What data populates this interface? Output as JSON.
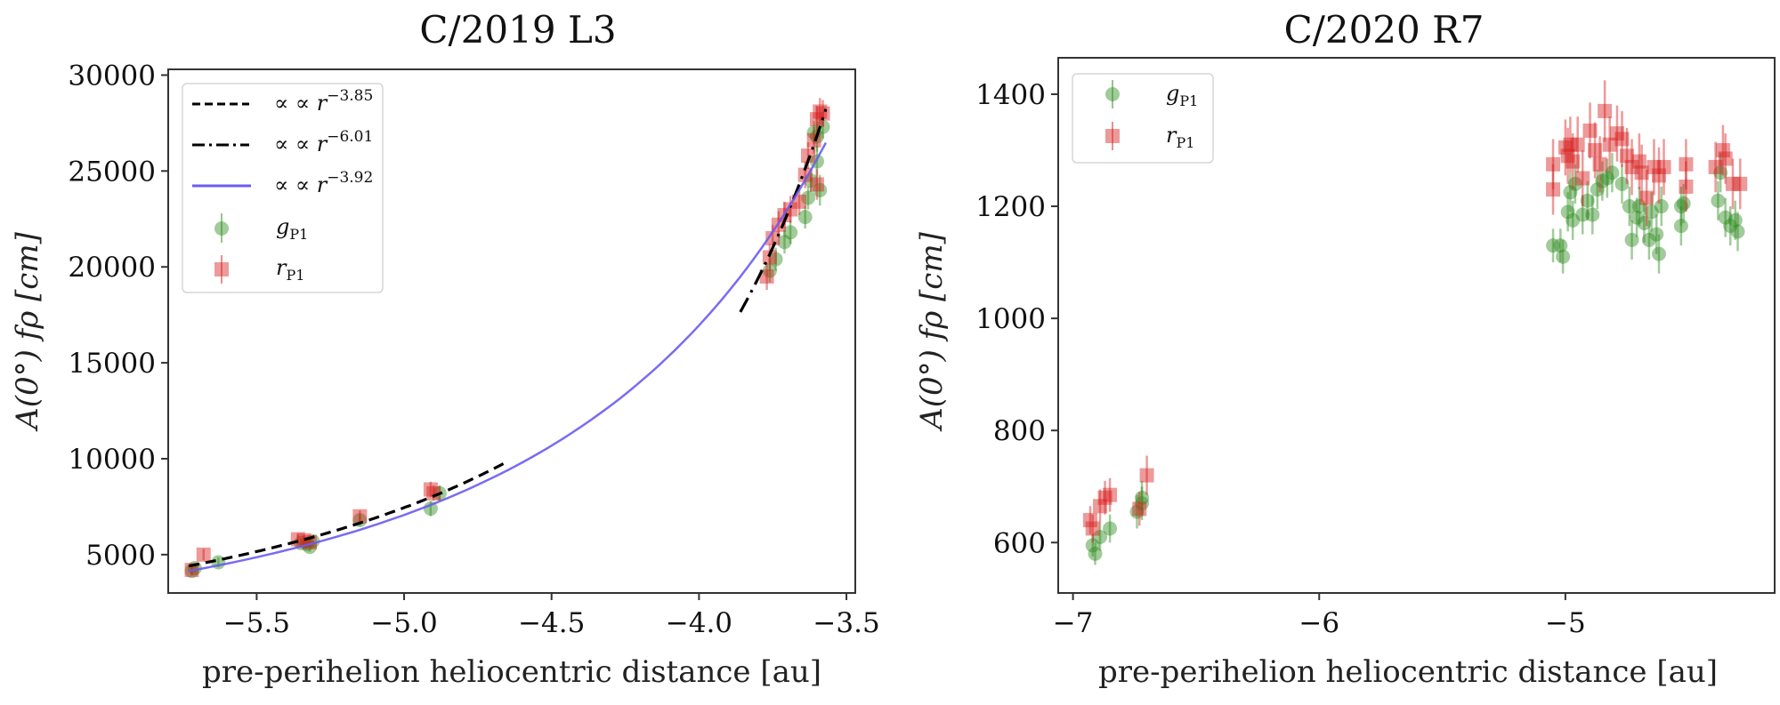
{
  "chart_data": [
    {
      "type": "scatter",
      "title": "C/2019 L3",
      "xlabel": "pre-perihelion heliocentric distance [au]",
      "ylabel": "A(0°) fρ [cm]",
      "xlim": [
        -5.8,
        -3.47
      ],
      "ylim": [
        3000,
        30300
      ],
      "xticks": [
        -5.5,
        -5.0,
        -4.5,
        -4.0,
        -3.5
      ],
      "xtick_labels": [
        "−5.5",
        "−5.0",
        "−4.5",
        "−4.0",
        "−3.5"
      ],
      "yticks": [
        5000,
        10000,
        15000,
        20000,
        25000,
        30000
      ],
      "ytick_labels": [
        "5000",
        "10000",
        "15000",
        "20000",
        "25000",
        "30000"
      ],
      "grid": false,
      "legend_position": "top-left",
      "legend": [
        {
          "label": "∝ r",
          "exponent": "−3.85",
          "style": "dashed",
          "color": "#000000"
        },
        {
          "label": "∝ r",
          "exponent": "−6.01",
          "style": "dashdot",
          "color": "#000000"
        },
        {
          "label": "∝ r",
          "exponent": "−3.92",
          "style": "solid",
          "color": "#6a5cf0"
        },
        {
          "label": "g",
          "subscript": "P1",
          "marker": "circle",
          "color": "#2e8b1e"
        },
        {
          "label": "r",
          "subscript": "P1",
          "marker": "square",
          "color": "#d62020"
        }
      ],
      "fits": [
        {
          "name": "dashed",
          "exponent": -3.85,
          "ref_x": -4.9,
          "ref_y": 8050,
          "x_range": [
            -5.73,
            -4.66
          ],
          "color": "#000000"
        },
        {
          "name": "dashdot",
          "exponent": -6.01,
          "ref_x": -3.75,
          "ref_y": 21000,
          "x_range": [
            -3.86,
            -3.57
          ],
          "color": "#000000"
        },
        {
          "name": "solid",
          "exponent": -3.92,
          "ref_x": -4.9,
          "ref_y": 7650,
          "x_range": [
            -5.73,
            -3.57
          ],
          "color": "#6a5cf0"
        }
      ],
      "series": [
        {
          "name": "gP1",
          "color": "#2e8b1e",
          "marker": "circle",
          "points": [
            [
              -5.72,
              4150,
              250
            ],
            [
              -5.71,
              4300,
              250
            ],
            [
              -5.63,
              4600,
              250
            ],
            [
              -5.35,
              5600,
              250
            ],
            [
              -5.33,
              5550,
              250
            ],
            [
              -5.32,
              5400,
              250
            ],
            [
              -5.31,
              5700,
              250
            ],
            [
              -5.15,
              6800,
              300
            ],
            [
              -4.91,
              7400,
              400
            ],
            [
              -4.88,
              8200,
              400
            ],
            [
              -3.76,
              19800,
              600
            ],
            [
              -3.74,
              20400,
              600
            ],
            [
              -3.71,
              21300,
              600
            ],
            [
              -3.69,
              21800,
              600
            ],
            [
              -3.64,
              22600,
              600
            ],
            [
              -3.63,
              23600,
              600
            ],
            [
              -3.62,
              24500,
              600
            ],
            [
              -3.6,
              25500,
              800
            ],
            [
              -3.59,
              24000,
              800
            ],
            [
              -3.6,
              26800,
              800
            ],
            [
              -3.58,
              27300,
              600
            ],
            [
              -3.61,
              27000,
              600
            ]
          ]
        },
        {
          "name": "rP1",
          "color": "#d62020",
          "marker": "square",
          "points": [
            [
              -5.72,
              4200,
              250
            ],
            [
              -5.68,
              5000,
              300
            ],
            [
              -5.36,
              5800,
              250
            ],
            [
              -5.34,
              5750,
              250
            ],
            [
              -5.32,
              5650,
              250
            ],
            [
              -5.15,
              7000,
              300
            ],
            [
              -4.91,
              8400,
              400
            ],
            [
              -4.9,
              8200,
              400
            ],
            [
              -3.77,
              19500,
              700
            ],
            [
              -3.76,
              20500,
              700
            ],
            [
              -3.75,
              21500,
              700
            ],
            [
              -3.73,
              22200,
              700
            ],
            [
              -3.71,
              22700,
              700
            ],
            [
              -3.69,
              23000,
              700
            ],
            [
              -3.66,
              23400,
              700
            ],
            [
              -3.64,
              24800,
              700
            ],
            [
              -3.63,
              25800,
              700
            ],
            [
              -3.61,
              26600,
              700
            ],
            [
              -3.6,
              27700,
              700
            ],
            [
              -3.59,
              28100,
              700
            ],
            [
              -3.58,
              28000,
              700
            ],
            [
              -3.6,
              24300,
              800
            ]
          ]
        }
      ]
    },
    {
      "type": "scatter",
      "title": "C/2020 R7",
      "xlabel": "pre-perihelion heliocentric distance [au]",
      "ylabel": "A(0°) fρ [cm]",
      "xlim": [
        -7.06,
        -4.15
      ],
      "ylim": [
        510,
        1465
      ],
      "xticks": [
        -7,
        -6,
        -5
      ],
      "xtick_labels": [
        "−7",
        "−6",
        "−5"
      ],
      "yticks": [
        600,
        800,
        1000,
        1200,
        1400
      ],
      "ytick_labels": [
        "600",
        "800",
        "1000",
        "1200",
        "1400"
      ],
      "grid": false,
      "legend_position": "top-left",
      "legend": [
        {
          "label": "g",
          "subscript": "P1",
          "marker": "circle",
          "color": "#2e8b1e"
        },
        {
          "label": "r",
          "subscript": "P1",
          "marker": "square",
          "color": "#d62020"
        }
      ],
      "series": [
        {
          "name": "gP1",
          "color": "#2e8b1e",
          "marker": "circle",
          "points": [
            [
              -6.92,
              595,
              20
            ],
            [
              -6.91,
              580,
              20
            ],
            [
              -6.89,
              610,
              25
            ],
            [
              -6.85,
              625,
              25
            ],
            [
              -6.74,
              655,
              30
            ],
            [
              -6.72,
              670,
              30
            ],
            [
              -6.72,
              680,
              30
            ],
            [
              -5.05,
              1130,
              30
            ],
            [
              -5.02,
              1130,
              30
            ],
            [
              -5.01,
              1110,
              30
            ],
            [
              -4.99,
              1190,
              35
            ],
            [
              -4.97,
              1175,
              35
            ],
            [
              -4.98,
              1225,
              35
            ],
            [
              -4.96,
              1240,
              35
            ],
            [
              -4.93,
              1185,
              35
            ],
            [
              -4.91,
              1210,
              35
            ],
            [
              -4.89,
              1185,
              35
            ],
            [
              -4.87,
              1230,
              35
            ],
            [
              -4.85,
              1245,
              35
            ],
            [
              -4.83,
              1250,
              35
            ],
            [
              -4.81,
              1260,
              35
            ],
            [
              -4.77,
              1240,
              35
            ],
            [
              -4.74,
              1200,
              35
            ],
            [
              -4.73,
              1140,
              35
            ],
            [
              -4.71,
              1180,
              35
            ],
            [
              -4.7,
              1200,
              35
            ],
            [
              -4.68,
              1170,
              35
            ],
            [
              -4.66,
              1140,
              35
            ],
            [
              -4.65,
              1190,
              35
            ],
            [
              -4.63,
              1150,
              35
            ],
            [
              -4.62,
              1115,
              35
            ],
            [
              -4.61,
              1200,
              35
            ],
            [
              -4.53,
              1200,
              35
            ],
            [
              -4.53,
              1165,
              35
            ],
            [
              -4.52,
              1205,
              35
            ],
            [
              -4.38,
              1210,
              35
            ],
            [
              -4.37,
              1260,
              35
            ],
            [
              -4.35,
              1180,
              35
            ],
            [
              -4.33,
              1165,
              35
            ],
            [
              -4.31,
              1175,
              35
            ],
            [
              -4.3,
              1155,
              35
            ]
          ]
        },
        {
          "name": "rP1",
          "color": "#d62020",
          "marker": "square",
          "points": [
            [
              -6.93,
              640,
              25
            ],
            [
              -6.92,
              625,
              25
            ],
            [
              -6.89,
              665,
              30
            ],
            [
              -6.87,
              680,
              30
            ],
            [
              -6.85,
              685,
              30
            ],
            [
              -6.73,
              660,
              30
            ],
            [
              -6.7,
              720,
              35
            ],
            [
              -5.05,
              1275,
              45
            ],
            [
              -5.05,
              1230,
              45
            ],
            [
              -5.0,
              1305,
              50
            ],
            [
              -4.99,
              1290,
              50
            ],
            [
              -4.98,
              1310,
              50
            ],
            [
              -4.97,
              1280,
              50
            ],
            [
              -4.95,
              1310,
              50
            ],
            [
              -4.93,
              1250,
              50
            ],
            [
              -4.9,
              1335,
              50
            ],
            [
              -4.88,
              1300,
              50
            ],
            [
              -4.86,
              1275,
              50
            ],
            [
              -4.84,
              1370,
              55
            ],
            [
              -4.82,
              1310,
              50
            ],
            [
              -4.79,
              1330,
              50
            ],
            [
              -4.77,
              1320,
              50
            ],
            [
              -4.75,
              1290,
              50
            ],
            [
              -4.73,
              1270,
              50
            ],
            [
              -4.7,
              1280,
              50
            ],
            [
              -4.69,
              1260,
              50
            ],
            [
              -4.67,
              1215,
              50
            ],
            [
              -4.64,
              1270,
              50
            ],
            [
              -4.62,
              1255,
              50
            ],
            [
              -4.6,
              1270,
              50
            ],
            [
              -4.51,
              1275,
              45
            ],
            [
              -4.51,
              1235,
              45
            ],
            [
              -4.39,
              1270,
              45
            ],
            [
              -4.36,
              1300,
              45
            ],
            [
              -4.35,
              1285,
              45
            ],
            [
              -4.32,
              1240,
              45
            ],
            [
              -4.29,
              1240,
              45
            ]
          ]
        }
      ]
    }
  ]
}
